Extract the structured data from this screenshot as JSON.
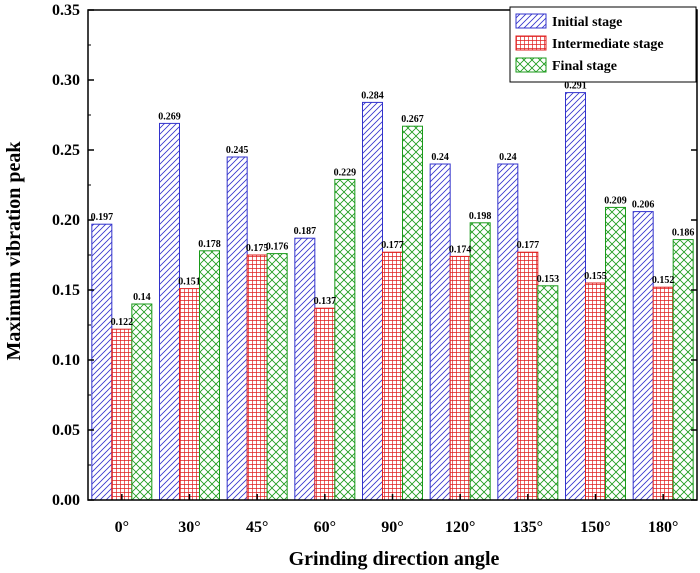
{
  "chart_data": {
    "type": "bar",
    "title": "",
    "xlabel": "Grinding direction angle",
    "ylabel": "Maximum vibration peak",
    "ylim": [
      0,
      0.35
    ],
    "yticks": [
      "0.00",
      "0.05",
      "0.10",
      "0.15",
      "0.20",
      "0.25",
      "0.30",
      "0.35"
    ],
    "categories": [
      "0°",
      "30°",
      "45°",
      "60°",
      "90°",
      "120°",
      "135°",
      "150°",
      "180°"
    ],
    "legend_position": "top-right",
    "series": [
      {
        "name": "Initial stage",
        "pattern": "diagonal-hatch",
        "color": "#3333cc",
        "values": [
          0.197,
          0.269,
          0.245,
          0.187,
          0.284,
          0.24,
          0.24,
          0.291,
          0.206
        ],
        "labels": [
          "0.197",
          "0.269",
          "0.245",
          "0.187",
          "0.284",
          "0.24",
          "0.24",
          "0.291",
          "0.206"
        ]
      },
      {
        "name": "Intermediate stage",
        "pattern": "grid",
        "color": "#e02020",
        "values": [
          0.122,
          0.151,
          0.175,
          0.137,
          0.177,
          0.174,
          0.177,
          0.155,
          0.152
        ],
        "labels": [
          "0.122",
          "0.151",
          "0.175",
          "0.137",
          "0.177",
          "0.174",
          "0.177",
          "0.155",
          "0.152"
        ]
      },
      {
        "name": "Final stage",
        "pattern": "crosshatch",
        "color": "#1a9a1a",
        "values": [
          0.14,
          0.178,
          0.176,
          0.229,
          0.267,
          0.198,
          0.153,
          0.209,
          0.186
        ],
        "labels": [
          "0.14",
          "0.178",
          "0.176",
          "0.229",
          "0.267",
          "0.198",
          "0.153",
          "0.209",
          "0.186"
        ]
      }
    ]
  }
}
